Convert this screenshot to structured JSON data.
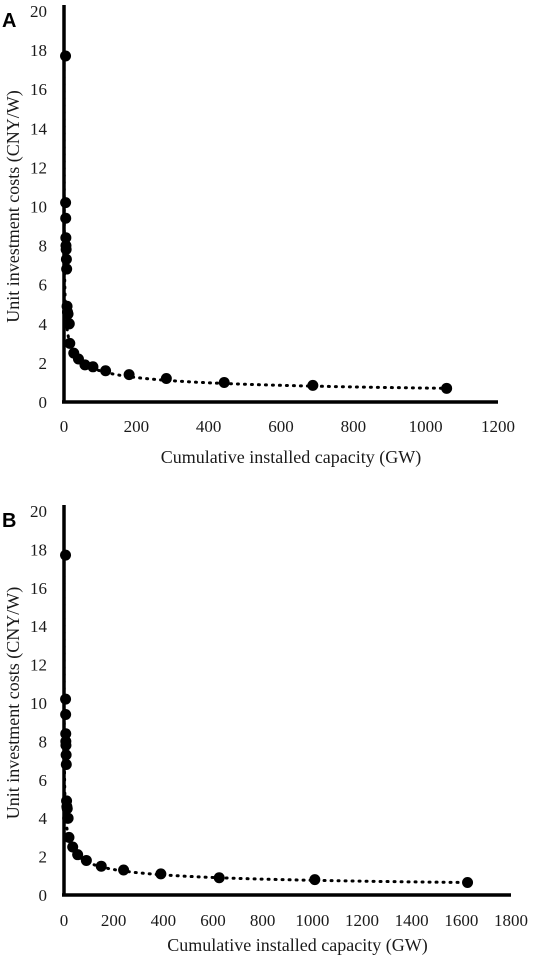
{
  "chart_data": [
    {
      "panel": "A",
      "type": "scatter",
      "xlabel": "Cumulative installed capacity (GW)",
      "ylabel": "Unit investment costs (CNY/W)",
      "xlim": [
        0,
        1200
      ],
      "ylim": [
        0,
        20
      ],
      "xticks": [
        "0",
        "200",
        "400",
        "600",
        "800",
        "1000",
        "1200"
      ],
      "yticks": [
        "0",
        "2",
        "4",
        "6",
        "8",
        "10",
        "12",
        "14",
        "16",
        "18",
        "20"
      ],
      "trendline": "dotted power fit",
      "series": [
        {
          "x": [
            0.1,
            0.3,
            0.6,
            1.0,
            1.3,
            1.8,
            2.5,
            3.2,
            4.3,
            5.5,
            7.0,
            9.0,
            10.5,
            16,
            27,
            40,
            58,
            80,
            115,
            180,
            283,
            443,
            688,
            1058
          ],
          "y": [
            17.7,
            10.2,
            9.4,
            8.4,
            8.0,
            7.8,
            7.3,
            6.8,
            4.9,
            4.6,
            4.5,
            4.0,
            4.0,
            3.0,
            2.5,
            2.2,
            1.9,
            1.8,
            1.6,
            1.4,
            1.2,
            1.0,
            0.85,
            0.7
          ]
        }
      ]
    },
    {
      "panel": "B",
      "type": "scatter",
      "xlabel": "Cumulative installed capacity (GW)",
      "ylabel": "Unit investment costs (CNY/W)",
      "xlim": [
        0,
        1800
      ],
      "ylim": [
        0,
        20
      ],
      "xticks": [
        "0",
        "200",
        "400",
        "600",
        "800",
        "1000",
        "1200",
        "1400",
        "1600",
        "1800"
      ],
      "yticks": [
        "0",
        "2",
        "4",
        "6",
        "8",
        "10",
        "12",
        "14",
        "16",
        "18",
        "20"
      ],
      "trendline": "dotted power fit",
      "series": [
        {
          "x": [
            0.1,
            0.3,
            0.6,
            1.0,
            1.3,
            1.8,
            2.5,
            3.2,
            4.3,
            5.5,
            7.0,
            9.0,
            10.5,
            20,
            35,
            55,
            90,
            150,
            240,
            390,
            625,
            1010,
            1625
          ],
          "y": [
            17.7,
            10.2,
            9.4,
            8.4,
            8.0,
            7.8,
            7.3,
            6.8,
            4.9,
            4.6,
            4.5,
            4.0,
            4.0,
            3.0,
            2.5,
            2.1,
            1.8,
            1.5,
            1.3,
            1.1,
            0.9,
            0.8,
            0.65
          ]
        }
      ]
    }
  ]
}
